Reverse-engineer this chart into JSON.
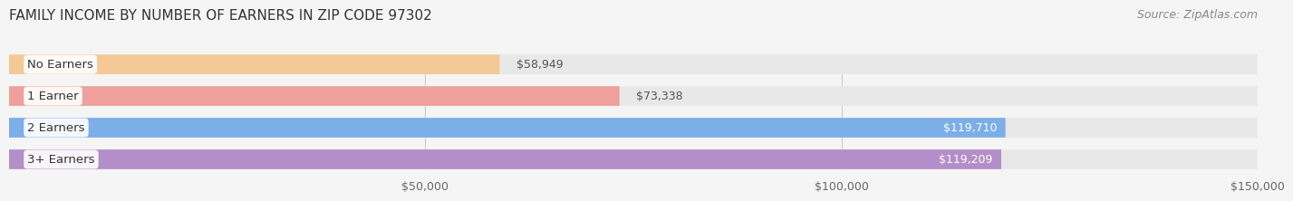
{
  "title": "FAMILY INCOME BY NUMBER OF EARNERS IN ZIP CODE 97302",
  "source": "Source: ZipAtlas.com",
  "categories": [
    "No Earners",
    "1 Earner",
    "2 Earners",
    "3+ Earners"
  ],
  "values": [
    58949,
    73338,
    119710,
    119209
  ],
  "labels": [
    "$58,949",
    "$73,338",
    "$119,710",
    "$119,209"
  ],
  "bar_colors": [
    "#f5c897",
    "#f0a09a",
    "#7caee8",
    "#b48ec8"
  ],
  "label_colors": [
    "#555555",
    "#555555",
    "#ffffff",
    "#ffffff"
  ],
  "bg_color": "#f5f5f5",
  "bar_bg_color": "#e8e8e8",
  "xlim": [
    0,
    150000
  ],
  "xticks": [
    50000,
    100000,
    150000
  ],
  "xtick_labels": [
    "$50,000",
    "$100,000",
    "$150,000"
  ],
  "title_fontsize": 11,
  "source_fontsize": 9,
  "label_fontsize": 9,
  "category_fontsize": 9.5,
  "tick_fontsize": 9
}
